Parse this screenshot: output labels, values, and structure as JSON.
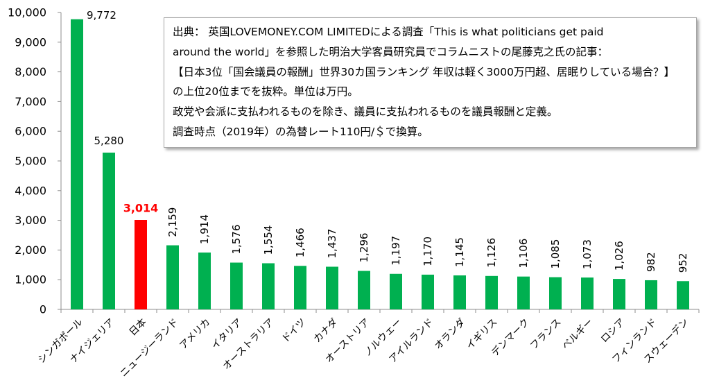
{
  "chart_data": {
    "type": "bar",
    "categories": [
      "シンガポール",
      "ナイジェリア",
      "日本",
      "ニュージーランド",
      "アメリカ",
      "イタリア",
      "オーストラリア",
      "ドイツ",
      "カナダ",
      "オーストリア",
      "ノルウェー",
      "アイルランド",
      "オランダ",
      "イギリス",
      "デンマーク",
      "フランス",
      "ベルギー",
      "ロシア",
      "フィンランド",
      "スウェーデン"
    ],
    "values": [
      9772,
      5280,
      3014,
      2159,
      1914,
      1576,
      1554,
      1466,
      1437,
      1296,
      1197,
      1170,
      1145,
      1126,
      1106,
      1085,
      1073,
      1026,
      982,
      952
    ],
    "data_labels": [
      "9,772",
      "5,280",
      "3,014",
      "2,159",
      "1,914",
      "1,576",
      "1,554",
      "1,466",
      "1,437",
      "1,296",
      "1,197",
      "1,170",
      "1,145",
      "1,126",
      "1,106",
      "1,085",
      "1,073",
      "1,026",
      "982",
      "952"
    ],
    "bar_colors": [
      "#00B050",
      "#00B050",
      "#FF0000",
      "#00B050",
      "#00B050",
      "#00B050",
      "#00B050",
      "#00B050",
      "#00B050",
      "#00B050",
      "#00B050",
      "#00B050",
      "#00B050",
      "#00B050",
      "#00B050",
      "#00B050",
      "#00B050",
      "#00B050",
      "#00B050",
      "#00B050"
    ],
    "highlight_color": "#FF0000",
    "ylim": [
      0,
      10000
    ],
    "yticks": [
      {
        "value": 0,
        "label": "0"
      },
      {
        "value": 1000,
        "label": "1,000"
      },
      {
        "value": 2000,
        "label": "2,000"
      },
      {
        "value": 3000,
        "label": "3,000"
      },
      {
        "value": 4000,
        "label": "4,000"
      },
      {
        "value": 5000,
        "label": "5,000"
      },
      {
        "value": 6000,
        "label": "6,000"
      },
      {
        "value": 7000,
        "label": "7,000"
      },
      {
        "value": 8000,
        "label": "8,000"
      },
      {
        "value": 9000,
        "label": "9,000"
      },
      {
        "value": 10000,
        "label": "10,000"
      }
    ],
    "grid": false,
    "legend": "none",
    "annotation": [
      "出典： 英国LOVEMONEY.COM LIMITEDによる調査「This is what politicians get paid",
      "around the world」を参照した明治大学客員研究員でコラムニストの尾藤克之氏の記事：",
      "【日本3位「国会議員の報酬」世界30カ国ランキング 年収は軽く3000万円超、居眠りしている場合？】",
      "の上位20位までを抜粋。単位は万円。",
      "政党や会派に支払われるものを除き、議員に支払われるものを議員報酬と定義。",
      "調査時点（2019年）の為替レート110円/＄で換算。"
    ]
  }
}
